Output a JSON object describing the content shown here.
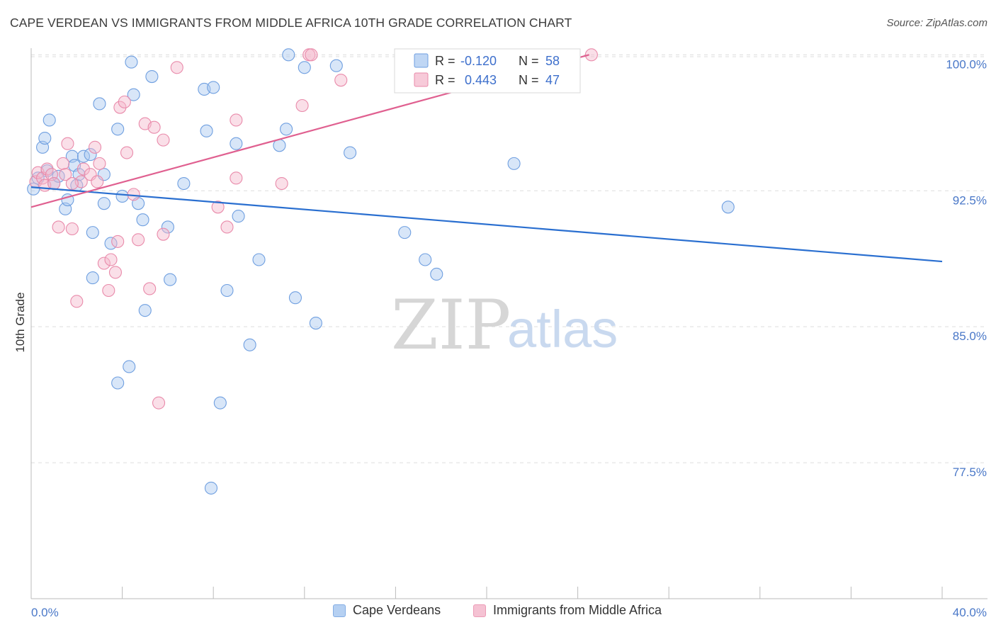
{
  "title": "CAPE VERDEAN VS IMMIGRANTS FROM MIDDLE AFRICA 10TH GRADE CORRELATION CHART",
  "source": "Source: ZipAtlas.com",
  "watermark": {
    "zip": "ZIP",
    "atlas": "atlas"
  },
  "colors": {
    "blue_fill": "#a9c8f0",
    "blue_stroke": "#6f9fe0",
    "blue_line": "#2a6fd0",
    "pink_fill": "#f4b8cc",
    "pink_stroke": "#e98aaa",
    "pink_line": "#e06090",
    "grid": "#dddddd",
    "tick_label": "#4a78c8"
  },
  "legend": {
    "rows": [
      {
        "r_label": "R =",
        "r_value": "-0.120",
        "n_label": "N =",
        "n_value": "58"
      },
      {
        "r_label": "R =",
        "r_value": "0.443",
        "n_label": "N =",
        "n_value": "47"
      }
    ]
  },
  "chart_data": {
    "type": "scatter",
    "xlabel": "",
    "ylabel": "10th Grade",
    "xlim": [
      0,
      40
    ],
    "ylim": [
      70.0,
      100.6
    ],
    "x_tick_labels": [
      "0.0%",
      "40.0%"
    ],
    "y_ticks": [
      77.5,
      85.0,
      92.5,
      100.0
    ],
    "y_tick_labels": [
      "77.5%",
      "85.0%",
      "92.5%",
      "100.0%"
    ],
    "grid": true,
    "legend_position": "top-center",
    "series": [
      {
        "name": "Cape Verdeans",
        "color_key": "blue",
        "trend": {
          "x": [
            0,
            40
          ],
          "y": [
            92.7,
            88.6
          ]
        },
        "points": [
          [
            0.1,
            92.6
          ],
          [
            0.3,
            93.2
          ],
          [
            0.5,
            94.9
          ],
          [
            0.6,
            95.4
          ],
          [
            0.7,
            93.6
          ],
          [
            0.8,
            96.4
          ],
          [
            1.0,
            92.9
          ],
          [
            1.2,
            93.3
          ],
          [
            1.5,
            91.5
          ],
          [
            1.6,
            92.0
          ],
          [
            1.8,
            94.4
          ],
          [
            1.9,
            93.9
          ],
          [
            2.0,
            92.8
          ],
          [
            2.1,
            93.4
          ],
          [
            2.3,
            94.4
          ],
          [
            2.6,
            94.5
          ],
          [
            2.7,
            90.2
          ],
          [
            2.7,
            87.7
          ],
          [
            3.0,
            97.3
          ],
          [
            3.2,
            91.8
          ],
          [
            3.2,
            93.4
          ],
          [
            3.5,
            89.6
          ],
          [
            3.8,
            95.9
          ],
          [
            4.0,
            92.2
          ],
          [
            4.4,
            99.6
          ],
          [
            4.5,
            97.8
          ],
          [
            4.7,
            91.8
          ],
          [
            4.9,
            90.9
          ],
          [
            5.0,
            85.9
          ],
          [
            5.3,
            98.8
          ],
          [
            6.0,
            90.5
          ],
          [
            6.1,
            87.6
          ],
          [
            6.7,
            92.9
          ],
          [
            7.6,
            98.1
          ],
          [
            7.7,
            95.8
          ],
          [
            8.0,
            98.2
          ],
          [
            8.6,
            87.0
          ],
          [
            9.0,
            95.1
          ],
          [
            9.1,
            91.1
          ],
          [
            9.6,
            84.0
          ],
          [
            10.0,
            88.7
          ],
          [
            10.9,
            95.0
          ],
          [
            11.2,
            95.9
          ],
          [
            11.3,
            100.0
          ],
          [
            11.6,
            86.6
          ],
          [
            12.0,
            99.3
          ],
          [
            12.5,
            85.2
          ],
          [
            13.4,
            99.4
          ],
          [
            14.0,
            94.6
          ],
          [
            16.4,
            90.2
          ],
          [
            17.3,
            88.7
          ],
          [
            17.8,
            87.9
          ],
          [
            21.2,
            94.0
          ],
          [
            30.6,
            91.6
          ],
          [
            4.3,
            82.8
          ],
          [
            3.8,
            81.9
          ],
          [
            8.3,
            80.8
          ],
          [
            7.9,
            76.1
          ]
        ]
      },
      {
        "name": "Immigrants from Middle Africa",
        "color_key": "pink",
        "trend": {
          "x": [
            0,
            24.5
          ],
          "y": [
            91.6,
            100.0
          ]
        },
        "points": [
          [
            0.2,
            93.0
          ],
          [
            0.3,
            93.5
          ],
          [
            0.5,
            93.2
          ],
          [
            0.6,
            92.8
          ],
          [
            0.7,
            93.7
          ],
          [
            0.9,
            93.4
          ],
          [
            1.0,
            92.9
          ],
          [
            1.2,
            90.5
          ],
          [
            1.4,
            94.0
          ],
          [
            1.5,
            93.4
          ],
          [
            1.6,
            95.1
          ],
          [
            1.8,
            90.4
          ],
          [
            2.0,
            86.4
          ],
          [
            2.2,
            93.0
          ],
          [
            2.3,
            93.7
          ],
          [
            2.6,
            93.4
          ],
          [
            2.8,
            94.9
          ],
          [
            2.9,
            93.0
          ],
          [
            3.0,
            94.0
          ],
          [
            3.2,
            88.5
          ],
          [
            3.4,
            87.0
          ],
          [
            3.5,
            88.7
          ],
          [
            3.7,
            88.0
          ],
          [
            3.8,
            89.7
          ],
          [
            3.9,
            97.1
          ],
          [
            4.1,
            97.4
          ],
          [
            4.2,
            94.6
          ],
          [
            4.5,
            92.3
          ],
          [
            4.7,
            89.8
          ],
          [
            5.0,
            96.2
          ],
          [
            5.2,
            87.1
          ],
          [
            5.4,
            96.0
          ],
          [
            5.8,
            95.3
          ],
          [
            5.8,
            90.1
          ],
          [
            6.4,
            99.3
          ],
          [
            5.6,
            80.8
          ],
          [
            8.2,
            91.6
          ],
          [
            8.6,
            90.5
          ],
          [
            9.0,
            96.4
          ],
          [
            9.0,
            93.2
          ],
          [
            11.0,
            92.9
          ],
          [
            11.9,
            97.2
          ],
          [
            12.2,
            100.0
          ],
          [
            12.3,
            100.0
          ],
          [
            13.6,
            98.6
          ],
          [
            24.6,
            100.0
          ],
          [
            1.8,
            92.9
          ]
        ]
      }
    ]
  }
}
